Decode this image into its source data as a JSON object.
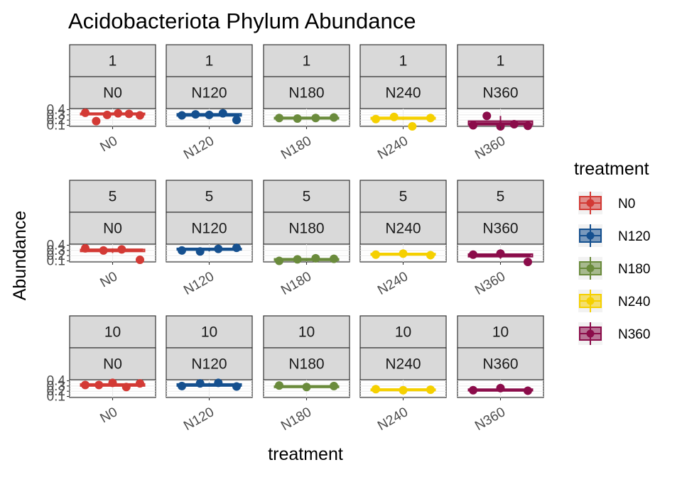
{
  "chart_data": {
    "type": "boxplot-faceted",
    "title": "Acidobacteriota Phylum Abundance",
    "xlabel": "treatment",
    "ylabel": "Abundance",
    "ylim": [
      0.08,
      0.42
    ],
    "yticks": [
      0.1,
      0.2,
      0.3,
      0.4
    ],
    "ytick_labels": [
      "0.1",
      "0.2",
      "0.3",
      "0.4"
    ],
    "legend": {
      "title": "treatment",
      "position": "right"
    },
    "treatments": [
      {
        "name": "N0",
        "color": "#d33a35"
      },
      {
        "name": "N120",
        "color": "#15508f"
      },
      {
        "name": "N180",
        "color": "#6a8b3c"
      },
      {
        "name": "N240",
        "color": "#f5d000"
      },
      {
        "name": "N360",
        "color": "#8b0c4a"
      }
    ],
    "facet_rows": [
      "1",
      "5",
      "10"
    ],
    "facets": [
      {
        "row": "1",
        "col": "N0",
        "points": [
          0.34,
          0.18,
          0.3,
          0.33,
          0.32,
          0.29
        ],
        "box": [
          0.29,
          0.31,
          0.32,
          0.33,
          0.34
        ]
      },
      {
        "row": "1",
        "col": "N120",
        "points": [
          0.29,
          0.31,
          0.3,
          0.33,
          0.2
        ],
        "box": [
          0.25,
          0.28,
          0.3,
          0.32,
          0.33
        ]
      },
      {
        "row": "1",
        "col": "N180",
        "points": [
          0.24,
          0.23,
          0.24,
          0.25
        ],
        "box": [
          0.22,
          0.23,
          0.24,
          0.25,
          0.26
        ]
      },
      {
        "row": "1",
        "col": "N240",
        "points": [
          0.22,
          0.26,
          0.08,
          0.24
        ],
        "box": [
          0.2,
          0.22,
          0.24,
          0.25,
          0.26
        ]
      },
      {
        "row": "1",
        "col": "N360",
        "points": [
          0.1,
          0.28,
          0.08,
          0.12,
          0.09
        ],
        "box": [
          0.09,
          0.11,
          0.13,
          0.18,
          0.28
        ]
      },
      {
        "row": "5",
        "col": "N0",
        "points": [
          0.34,
          0.3,
          0.32,
          0.12
        ],
        "box": [
          0.25,
          0.28,
          0.31,
          0.32,
          0.34
        ]
      },
      {
        "row": "5",
        "col": "N120",
        "points": [
          0.3,
          0.28,
          0.33,
          0.35
        ],
        "box": [
          0.28,
          0.31,
          0.32,
          0.34,
          0.35
        ]
      },
      {
        "row": "5",
        "col": "N180",
        "points": [
          0.1,
          0.13,
          0.15,
          0.14
        ],
        "box": [
          0.09,
          0.11,
          0.13,
          0.14,
          0.15
        ]
      },
      {
        "row": "5",
        "col": "N240",
        "points": [
          0.22,
          0.24,
          0.21
        ],
        "box": [
          0.21,
          0.22,
          0.23,
          0.24,
          0.25
        ]
      },
      {
        "row": "5",
        "col": "N360",
        "points": [
          0.22,
          0.24,
          0.08
        ],
        "box": [
          0.14,
          0.18,
          0.21,
          0.23,
          0.24
        ]
      },
      {
        "row": "10",
        "col": "N0",
        "points": [
          0.32,
          0.32,
          0.36,
          0.28,
          0.35
        ],
        "box": [
          0.28,
          0.3,
          0.32,
          0.34,
          0.36
        ]
      },
      {
        "row": "10",
        "col": "N120",
        "points": [
          0.3,
          0.35,
          0.36,
          0.29
        ],
        "box": [
          0.29,
          0.3,
          0.32,
          0.34,
          0.36
        ]
      },
      {
        "row": "10",
        "col": "N180",
        "points": [
          0.31,
          0.28,
          0.3
        ],
        "box": [
          0.27,
          0.28,
          0.29,
          0.3,
          0.31
        ]
      },
      {
        "row": "10",
        "col": "N240",
        "points": [
          0.24,
          0.22,
          0.23
        ],
        "box": [
          0.21,
          0.22,
          0.23,
          0.24,
          0.25
        ]
      },
      {
        "row": "10",
        "col": "N360",
        "points": [
          0.22,
          0.26,
          0.21
        ],
        "box": [
          0.2,
          0.21,
          0.22,
          0.24,
          0.26
        ]
      }
    ]
  }
}
